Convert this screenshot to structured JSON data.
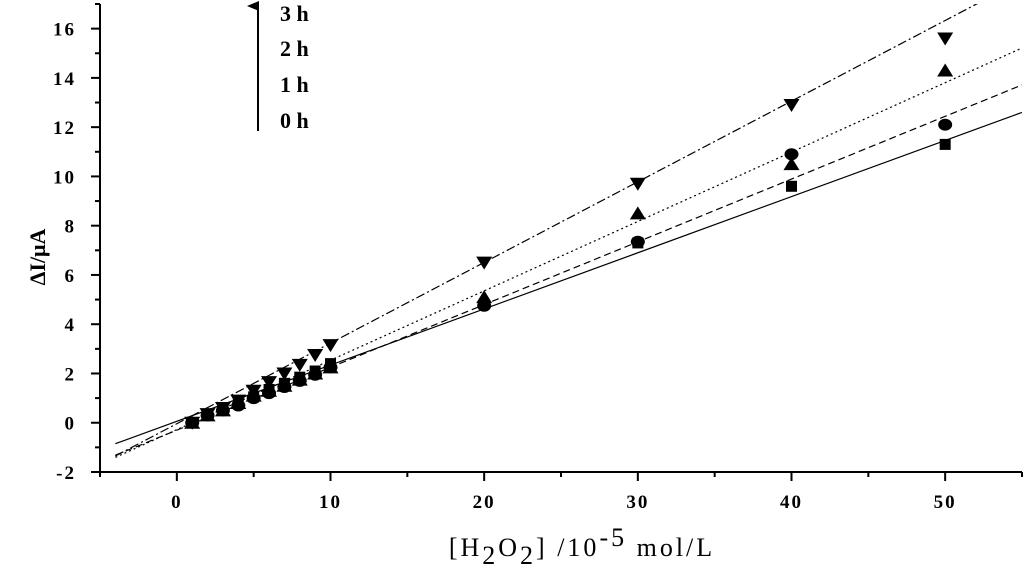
{
  "chart_data": {
    "type": "scatter",
    "xlabel_parts": {
      "open": "[H",
      "sub1": "2",
      "mid": "O",
      "sub2": "2",
      "close": "] /10",
      "sup": "-5",
      "unit": " mol/L"
    },
    "ylabel": "ΔI/μA",
    "xlim": [
      -5,
      55
    ],
    "ylim": [
      -2,
      17
    ],
    "xticks": [
      0,
      10,
      20,
      30,
      40,
      50
    ],
    "yticks": [
      -2,
      0,
      2,
      4,
      6,
      8,
      10,
      12,
      14,
      16
    ],
    "xtick_labels": [
      "0",
      "10",
      "20",
      "30",
      "40",
      "50"
    ],
    "ytick_labels": [
      "-2",
      "0",
      "2",
      "4",
      "6",
      "8",
      "10",
      "12",
      "14",
      "16"
    ],
    "legend_labels": [
      "3 h",
      "2 h",
      "1 h",
      "0 h"
    ],
    "legend_arrow": "up",
    "series": [
      {
        "name": "0 h",
        "marker": "square",
        "line_style": "solid",
        "x": [
          1,
          2,
          3,
          4,
          5,
          6,
          7,
          8,
          9,
          10,
          30,
          40,
          50
        ],
        "y": [
          0.0,
          0.3,
          0.55,
          0.8,
          1.05,
          1.35,
          1.6,
          1.85,
          2.1,
          2.4,
          7.3,
          9.6,
          11.3
        ],
        "fit": {
          "slope": 0.228,
          "intercept": 0.06
        }
      },
      {
        "name": "1 h",
        "marker": "circle",
        "line_style": "dashed",
        "x": [
          1,
          2,
          3,
          4,
          5,
          6,
          7,
          8,
          9,
          10,
          20,
          30,
          40,
          50
        ],
        "y": [
          0.0,
          0.3,
          0.5,
          0.7,
          1.0,
          1.2,
          1.45,
          1.7,
          1.95,
          2.25,
          4.75,
          7.35,
          10.9,
          12.1
        ],
        "fit": {
          "slope": 0.2548,
          "intercept": -0.3
        }
      },
      {
        "name": "2 h",
        "marker": "triangle-up",
        "line_style": "dotted",
        "x": [
          1,
          2,
          3,
          4,
          5,
          6,
          7,
          8,
          9,
          10,
          20,
          30,
          40,
          50
        ],
        "y": [
          0.0,
          0.3,
          0.5,
          0.8,
          1.1,
          1.3,
          1.5,
          1.75,
          2.0,
          2.25,
          5.1,
          8.5,
          10.5,
          14.3
        ],
        "fit": {
          "slope": 0.2817,
          "intercept": -0.28
        }
      },
      {
        "name": "3 h",
        "marker": "triangle-down",
        "line_style": "dashdot",
        "x": [
          1,
          2,
          3,
          4,
          5,
          6,
          7,
          8,
          9,
          10,
          20,
          30,
          40,
          50
        ],
        "y": [
          0.0,
          0.35,
          0.6,
          0.9,
          1.3,
          1.65,
          2.0,
          2.35,
          2.75,
          3.15,
          6.5,
          9.7,
          12.9,
          15.6
        ],
        "fit": {
          "slope": 0.3274,
          "intercept": -0.04
        }
      }
    ],
    "grid": false,
    "legend_placement": "top-left"
  }
}
